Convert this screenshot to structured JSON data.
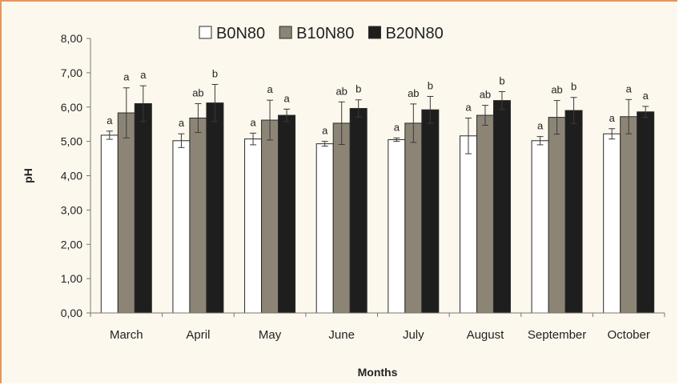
{
  "chart_data": {
    "type": "bar",
    "title": "",
    "xlabel": "Months",
    "ylabel": "pH",
    "ylim": [
      0,
      8
    ],
    "y_ticks": [
      "0,00",
      "1,00",
      "2,00",
      "3,00",
      "4,00",
      "5,00",
      "6,00",
      "7,00",
      "8,00"
    ],
    "categories": [
      "March",
      "April",
      "May",
      "June",
      "July",
      "August",
      "September",
      "October"
    ],
    "legend_position": "top-center",
    "grid": false,
    "series": [
      {
        "name": "B0N80",
        "color": "#ffffff",
        "values": [
          5.18,
          5.02,
          5.07,
          4.93,
          5.05,
          5.16,
          5.02,
          5.22
        ],
        "errors": [
          0.12,
          0.2,
          0.17,
          0.07,
          0.05,
          0.52,
          0.12,
          0.15
        ],
        "labels": [
          "a",
          "a",
          "a",
          "a",
          "a",
          "a",
          "a",
          "a"
        ]
      },
      {
        "name": "B10N80",
        "color": "#8c8576",
        "values": [
          5.83,
          5.68,
          5.62,
          5.53,
          5.53,
          5.76,
          5.7,
          5.72
        ],
        "errors": [
          0.73,
          0.42,
          0.58,
          0.62,
          0.56,
          0.29,
          0.49,
          0.5
        ],
        "labels": [
          "a",
          "ab",
          "a",
          "ab",
          "ab",
          "ab",
          "ab",
          "a"
        ]
      },
      {
        "name": "B20N80",
        "color": "#1e1e1e",
        "values": [
          6.1,
          6.12,
          5.76,
          5.96,
          5.92,
          6.19,
          5.9,
          5.86
        ],
        "errors": [
          0.52,
          0.54,
          0.18,
          0.25,
          0.39,
          0.26,
          0.38,
          0.16
        ],
        "labels": [
          "a",
          "b",
          "a",
          "b",
          "b",
          "b",
          "b",
          "a"
        ]
      }
    ]
  }
}
